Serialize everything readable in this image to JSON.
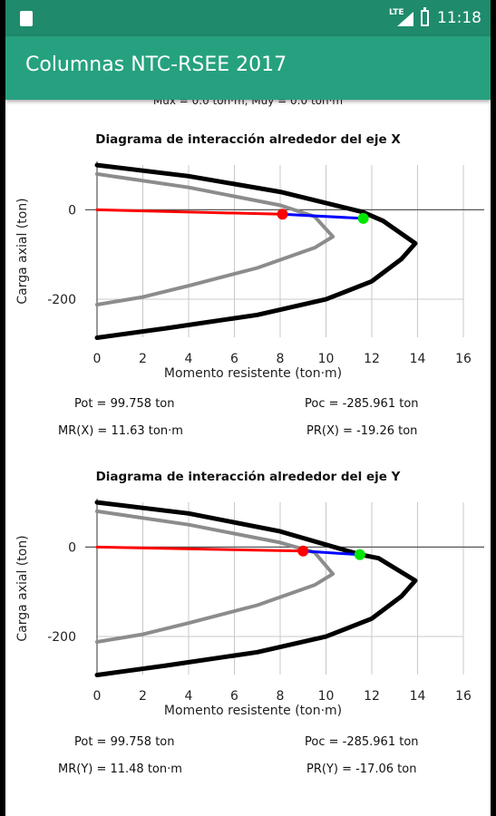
{
  "status_bar": {
    "network": "LTE",
    "time": "11:18"
  },
  "app_bar": {
    "title": "Columnas NTC-RSEE 2017"
  },
  "clipped_line": "Mux = 0.0 ton·m, Muy = 0.0 ton·m",
  "charts": [
    {
      "title": "Diagrama de interacción alrededor del eje X",
      "xlabel": "Momento resistente (ton·m)",
      "ylabel": "Carga axial (ton)",
      "results": {
        "pot": "Pot = 99.758 ton",
        "poc": "Poc = -285.961 ton",
        "mr": "MR(X) = 11.63 ton·m",
        "pr": "PR(X) = -19.26 ton"
      }
    },
    {
      "title": "Diagrama de interacción alrededor del eje Y",
      "xlabel": "Momento resistente (ton·m)",
      "ylabel": "Carga axial (ton)",
      "results": {
        "pot": "Pot = 99.758 ton",
        "poc": "Poc = -285.961 ton",
        "mr": "MR(Y) = 11.48 ton·m",
        "pr": "PR(Y) = -17.06 ton"
      }
    }
  ],
  "chart_data": [
    {
      "type": "line",
      "title": "Diagrama de interacción alrededor del eje X",
      "xlabel": "Momento resistente (ton·m)",
      "ylabel": "Carga axial (ton)",
      "xlim": [
        0,
        16
      ],
      "ylim": [
        -285,
        100
      ],
      "xticks": [
        0,
        2,
        4,
        6,
        8,
        10,
        12,
        14,
        16
      ],
      "yticks": [
        0,
        -200
      ],
      "grid": true,
      "series": [
        {
          "color": "#000000",
          "points": [
            [
              0,
              99.8
            ],
            [
              4,
              75
            ],
            [
              8,
              40
            ],
            [
              11.6,
              -5
            ],
            [
              12.5,
              -25
            ],
            [
              13.9,
              -75
            ],
            [
              13.3,
              -110
            ],
            [
              12,
              -160
            ],
            [
              10,
              -200
            ],
            [
              7,
              -235
            ],
            [
              3,
              -265
            ],
            [
              0,
              -286
            ]
          ]
        },
        {
          "color": "#8c8c8c",
          "points": [
            [
              0,
              80
            ],
            [
              4,
              50
            ],
            [
              8,
              10
            ],
            [
              9.5,
              -15
            ],
            [
              10.3,
              -60
            ],
            [
              9.5,
              -85
            ],
            [
              7,
              -130
            ],
            [
              4,
              -170
            ],
            [
              2,
              -195
            ],
            [
              0,
              -212
            ]
          ]
        },
        {
          "color": "#ff0000",
          "points": [
            [
              0,
              0
            ],
            [
              8.1,
              -10
            ]
          ]
        },
        {
          "color": "#0000ff",
          "points": [
            [
              8.1,
              -10
            ],
            [
              11.63,
              -19.26
            ]
          ]
        }
      ],
      "markers": [
        {
          "color": "#ff0000",
          "x": 8.1,
          "y": -10
        },
        {
          "color": "#00e600",
          "x": 11.63,
          "y": -19.26
        }
      ]
    },
    {
      "type": "line",
      "title": "Diagrama de interacción alrededor del eje Y",
      "xlabel": "Momento resistente (ton·m)",
      "ylabel": "Carga axial (ton)",
      "xlim": [
        0,
        16
      ],
      "ylim": [
        -285,
        100
      ],
      "xticks": [
        0,
        2,
        4,
        6,
        8,
        10,
        12,
        14,
        16
      ],
      "yticks": [
        0,
        -200
      ],
      "grid": true,
      "series": [
        {
          "color": "#000000",
          "points": [
            [
              0,
              99.8
            ],
            [
              4,
              75
            ],
            [
              8,
              35
            ],
            [
              11.5,
              -17
            ],
            [
              12.3,
              -25
            ],
            [
              13.9,
              -75
            ],
            [
              13.3,
              -110
            ],
            [
              12,
              -160
            ],
            [
              10,
              -200
            ],
            [
              7,
              -235
            ],
            [
              3,
              -265
            ],
            [
              0,
              -286
            ]
          ]
        },
        {
          "color": "#8c8c8c",
          "points": [
            [
              0,
              80
            ],
            [
              4,
              50
            ],
            [
              8,
              10
            ],
            [
              9.5,
              -12
            ],
            [
              10.3,
              -60
            ],
            [
              9.5,
              -85
            ],
            [
              7,
              -130
            ],
            [
              4,
              -170
            ],
            [
              2,
              -195
            ],
            [
              0,
              -212
            ]
          ]
        },
        {
          "color": "#ff0000",
          "points": [
            [
              0,
              0
            ],
            [
              9.0,
              -9
            ]
          ]
        },
        {
          "color": "#0000ff",
          "points": [
            [
              9.0,
              -9
            ],
            [
              11.48,
              -17.06
            ]
          ]
        }
      ],
      "markers": [
        {
          "color": "#ff0000",
          "x": 9.0,
          "y": -9
        },
        {
          "color": "#00e600",
          "x": 11.48,
          "y": -17.06
        }
      ]
    }
  ]
}
